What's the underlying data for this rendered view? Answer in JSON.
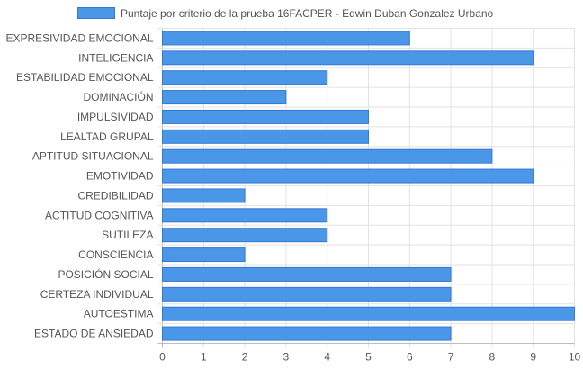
{
  "chart_data": {
    "type": "bar",
    "orientation": "horizontal",
    "title": "",
    "xlabel": "",
    "ylabel": "",
    "xlim": [
      0,
      10
    ],
    "ticks": [
      "0",
      "1",
      "2",
      "3",
      "4",
      "5",
      "6",
      "7",
      "8",
      "9",
      "10"
    ],
    "grid": true,
    "legend_position": "top",
    "categories": [
      "EXPRESIVIDAD EMOCIONAL",
      "INTELIGENCIA",
      "ESTABILIDAD EMOCIONAL",
      "DOMINACIÓN",
      "IMPULSIVIDAD",
      "LEALTAD GRUPAL",
      "APTITUD SITUACIONAL",
      "EMOTIVIDAD",
      "CREDIBILIDAD",
      "ACTITUD COGNITIVA",
      "SUTILEZA",
      "CONSCIENCIA",
      "POSICIÓN SOCIAL",
      "CERTEZA INDIVIDUAL",
      "AUTOESTIMA",
      "ESTADO DE ANSIEDAD"
    ],
    "series": [
      {
        "name": "Puntaje por criterio de la prueba 16FACPER - Edwin Duban Gonzalez Urbano",
        "values": [
          6,
          9,
          4,
          3,
          5,
          5,
          8,
          9,
          2,
          4,
          4,
          2,
          7,
          7,
          10,
          7
        ],
        "color": "#4a97e8",
        "border_color": "#3579d6"
      }
    ]
  }
}
